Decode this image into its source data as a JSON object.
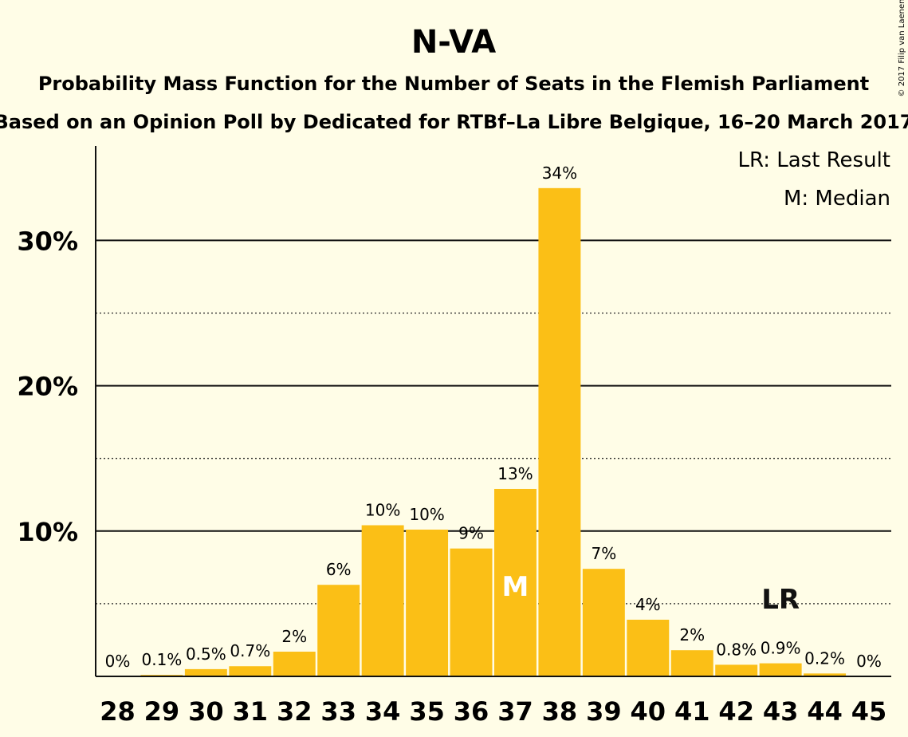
{
  "chart_data": {
    "type": "bar",
    "title": "N-VA",
    "subtitle": "Probability Mass Function for the Number of Seats in the Flemish Parliament",
    "subtitle2": "Based on an Opinion Poll by Dedicated for RTBf–La Libre Belgique, 16–20 March 2017",
    "copyright": "© 2017 Filip van Laenen",
    "legend": [
      "LR: Last Result",
      "M: Median"
    ],
    "legend_position": "top-right",
    "categories": [
      "28",
      "29",
      "30",
      "31",
      "32",
      "33",
      "34",
      "35",
      "36",
      "37",
      "38",
      "39",
      "40",
      "41",
      "42",
      "43",
      "44",
      "45"
    ],
    "values": [
      0,
      0.1,
      0.5,
      0.7,
      1.7,
      6.3,
      10.4,
      10.1,
      8.8,
      12.9,
      33.6,
      7.4,
      3.9,
      1.8,
      0.8,
      0.9,
      0.2,
      0
    ],
    "data_labels": [
      "0%",
      "0.1%",
      "0.5%",
      "0.7%",
      "2%",
      "6%",
      "10%",
      "10%",
      "9%",
      "13%",
      "34%",
      "7%",
      "4%",
      "2%",
      "0.8%",
      "0.9%",
      "0.2%",
      "0%"
    ],
    "ylim": [
      0,
      36.5
    ],
    "yticks": [
      10,
      20,
      30
    ],
    "ytick_labels": [
      "10%",
      "20%",
      "30%"
    ],
    "minor_gridlines": [
      5,
      15,
      25
    ],
    "grid": true,
    "median_seat": "37",
    "median_label": "M",
    "last_result_seat": "43",
    "last_result_label": "LR",
    "last_result_level": 5,
    "bar_color": "#fbbf16"
  }
}
